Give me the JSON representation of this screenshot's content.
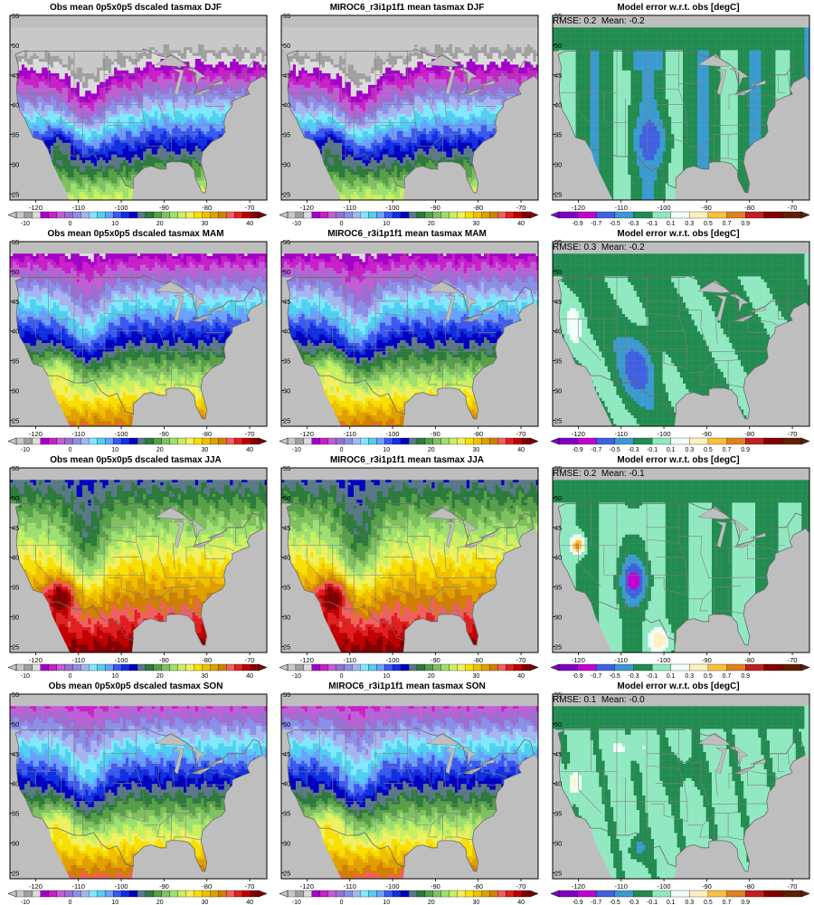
{
  "colors": {
    "ocean": "#bebebe",
    "state_lines": "#7f7f7f",
    "bg": "#ffffff",
    "abs_palette": [
      "#c8c8c8",
      "#a0a0a0",
      "#dcdcdc",
      "#a300c8",
      "#c820c8",
      "#bf5fd6",
      "#9b6fd0",
      "#8a90e8",
      "#a8b4f0",
      "#80e8ff",
      "#50d0f0",
      "#6aa0ff",
      "#3c58f0",
      "#1030e0",
      "#0000c0",
      "#5a7888",
      "#2c7a3c",
      "#56a048",
      "#80c060",
      "#9ee070",
      "#c8f060",
      "#f0f060",
      "#f8e000",
      "#f0c000",
      "#e0a000",
      "#d08000",
      "#f06060",
      "#e02020",
      "#c00000",
      "#800000"
    ],
    "err_palette": [
      "#8000c0",
      "#c000d0",
      "#4060e0",
      "#3a9ad0",
      "#228b50",
      "#90e8c0",
      "#f0fff8",
      "#fff0c0",
      "#f8c040",
      "#e08020",
      "#c02020",
      "#800000",
      "#602000"
    ]
  },
  "abs_colorbar_ticks": [
    "-10",
    "0",
    "10",
    "20",
    "30",
    "40"
  ],
  "err_colorbar_ticks": [
    "-0.9",
    "-0.7",
    "-0.5",
    "-0.3",
    "-0.1",
    "0.1",
    "0.3",
    "0.5",
    "0.7",
    "0.9"
  ],
  "x_ticks": [
    "-120",
    "-110",
    "-100",
    "-90",
    "-80",
    "-70"
  ],
  "y_ticks": [
    "25",
    "30",
    "35",
    "40",
    "45",
    "50",
    "55"
  ],
  "rows": [
    {
      "season": "DJF",
      "obs_title": "Obs mean 0p5x0p5 dscaled tasmax DJF",
      "model_title": "MIROC6_r3i1p1f1 mean tasmax DJF",
      "err_title": "Model error w.r.t. obs [degC]",
      "stats": "RMSE: 0.2  Mean: -0.2"
    },
    {
      "season": "MAM",
      "obs_title": "Obs mean 0p5x0p5 dscaled tasmax MAM",
      "model_title": "MIROC6_r3i1p1f1 mean tasmax MAM",
      "err_title": "Model error w.r.t. obs [degC]",
      "stats": "RMSE: 0.3  Mean: -0.2"
    },
    {
      "season": "JJA",
      "obs_title": "Obs mean 0p5x0p5 dscaled tasmax JJA",
      "model_title": "MIROC6_r3i1p1f1 mean tasmax JJA",
      "err_title": "Model error w.r.t. obs [degC]",
      "stats": "RMSE: 0.2  Mean: -0.1"
    },
    {
      "season": "SON",
      "obs_title": "Obs mean 0p5x0p5 dscaled tasmax SON",
      "model_title": "MIROC6_r3i1p1f1 mean tasmax SON",
      "err_title": "Model error w.r.t. obs [degC]",
      "stats": "RMSE: 0.1  Mean: -0.0"
    }
  ]
}
